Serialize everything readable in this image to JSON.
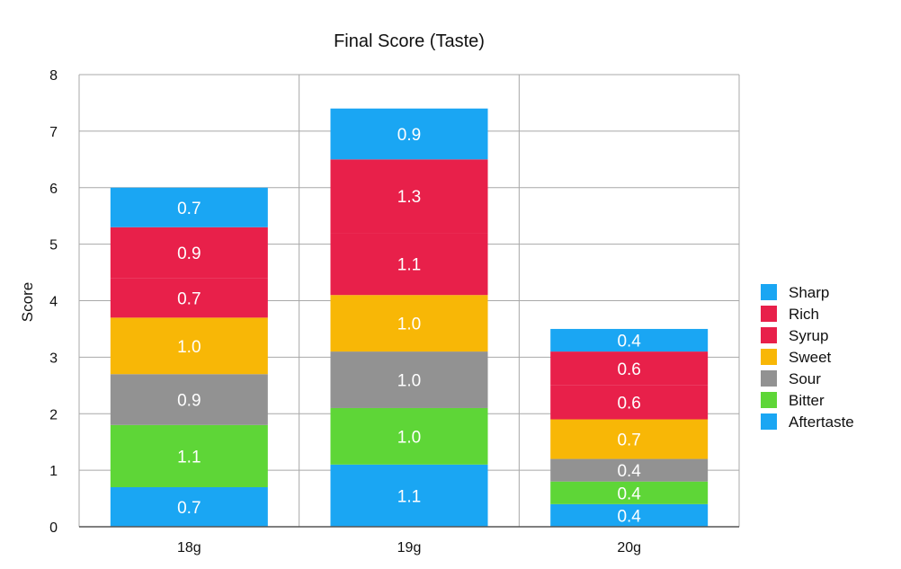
{
  "chart_data": {
    "type": "bar",
    "stacked": true,
    "title": "Final Score (Taste)",
    "xlabel": "",
    "ylabel": "Score",
    "ylim": [
      0,
      8
    ],
    "yticks": [
      0,
      1,
      2,
      3,
      4,
      5,
      6,
      7,
      8
    ],
    "grid": true,
    "legend_position": "right",
    "categories": [
      "18g",
      "19g",
      "20g"
    ],
    "series": [
      {
        "name": "Aftertaste",
        "color": "#1aa6f3",
        "values": [
          0.7,
          1.1,
          0.4
        ],
        "labels": [
          "0.7",
          "1.1",
          "0.4"
        ]
      },
      {
        "name": "Bitter",
        "color": "#5ed637",
        "values": [
          1.1,
          1.0,
          0.4
        ],
        "labels": [
          "1.1",
          "1.0",
          "0.4"
        ]
      },
      {
        "name": "Sour",
        "color": "#929292",
        "values": [
          0.9,
          1.0,
          0.4
        ],
        "labels": [
          "0.9",
          "1.0",
          "0.4"
        ]
      },
      {
        "name": "Sweet",
        "color": "#f8b706",
        "values": [
          1.0,
          1.0,
          0.7
        ],
        "labels": [
          "1.0",
          "1.0",
          "0.7"
        ]
      },
      {
        "name": "Syrup",
        "color": "#e8204a",
        "values": [
          0.7,
          1.1,
          0.6
        ],
        "labels": [
          "0.7",
          "1.1",
          "0.6"
        ]
      },
      {
        "name": "Rich",
        "color": "#e8204a",
        "values": [
          0.9,
          1.3,
          0.6
        ],
        "labels": [
          "0.9",
          "1.3",
          "0.6"
        ]
      },
      {
        "name": "Sharp",
        "color": "#1aa6f3",
        "values": [
          0.7,
          0.9,
          0.4
        ],
        "labels": [
          "0.7",
          "0.9",
          "0.4"
        ]
      }
    ],
    "legend_order": [
      "Sharp",
      "Rich",
      "Syrup",
      "Sweet",
      "Sour",
      "Bitter",
      "Aftertaste"
    ]
  }
}
